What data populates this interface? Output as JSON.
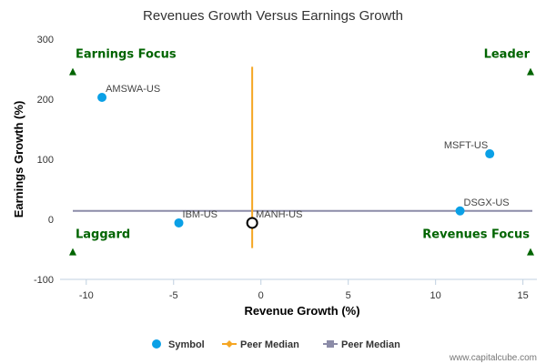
{
  "chart_data": {
    "type": "scatter",
    "title": "Revenues Growth Versus Earnings Growth",
    "xlabel": "Revenue Growth (%)",
    "ylabel": "Earnings Growth (%)",
    "xlim": [
      -11.5,
      15.8
    ],
    "ylim": [
      -100,
      300
    ],
    "xticks": [
      -10,
      -5,
      0,
      5,
      10,
      15
    ],
    "yticks": [
      -100,
      0,
      100,
      200,
      300
    ],
    "grid": false,
    "legend_position": "bottom",
    "points": [
      {
        "label": "AMSWA-US",
        "x": -9.1,
        "y": 203
      },
      {
        "label": "MSFT-US",
        "x": 13.1,
        "y": 109
      },
      {
        "label": "DSGX-US",
        "x": 11.4,
        "y": 14
      },
      {
        "label": "IBM-US",
        "x": -4.7,
        "y": -6
      },
      {
        "label": "MANH-US",
        "x": -0.5,
        "y": -6,
        "highlight": true
      }
    ],
    "median_x": -0.5,
    "median_x_y_range": [
      -48,
      254
    ],
    "median_y": 14,
    "quadrants": [
      {
        "label": "Earnings Focus",
        "x": -11.2,
        "y": 252,
        "anchor": "start",
        "marker": "left"
      },
      {
        "label": "Leader",
        "x": 15.5,
        "y": 252,
        "anchor": "end",
        "marker": "right"
      },
      {
        "label": "Laggard",
        "x": -11.2,
        "y": -48,
        "anchor": "start",
        "marker": "left"
      },
      {
        "label": "Revenues Focus",
        "x": 15.5,
        "y": -48,
        "anchor": "end",
        "marker": "right"
      }
    ],
    "legend": [
      {
        "label": "Symbol",
        "kind": "dot"
      },
      {
        "label": "Peer Median",
        "kind": "orange-line"
      },
      {
        "label": "Peer Median",
        "kind": "gray-line"
      }
    ],
    "colors": {
      "point": "#0AA0E6",
      "median_x": "#F5A623",
      "median_y": "#8C8CA8",
      "quadrant": "#006400",
      "axis": "#C0D0E0"
    }
  },
  "credit": "www.capitalcube.com"
}
